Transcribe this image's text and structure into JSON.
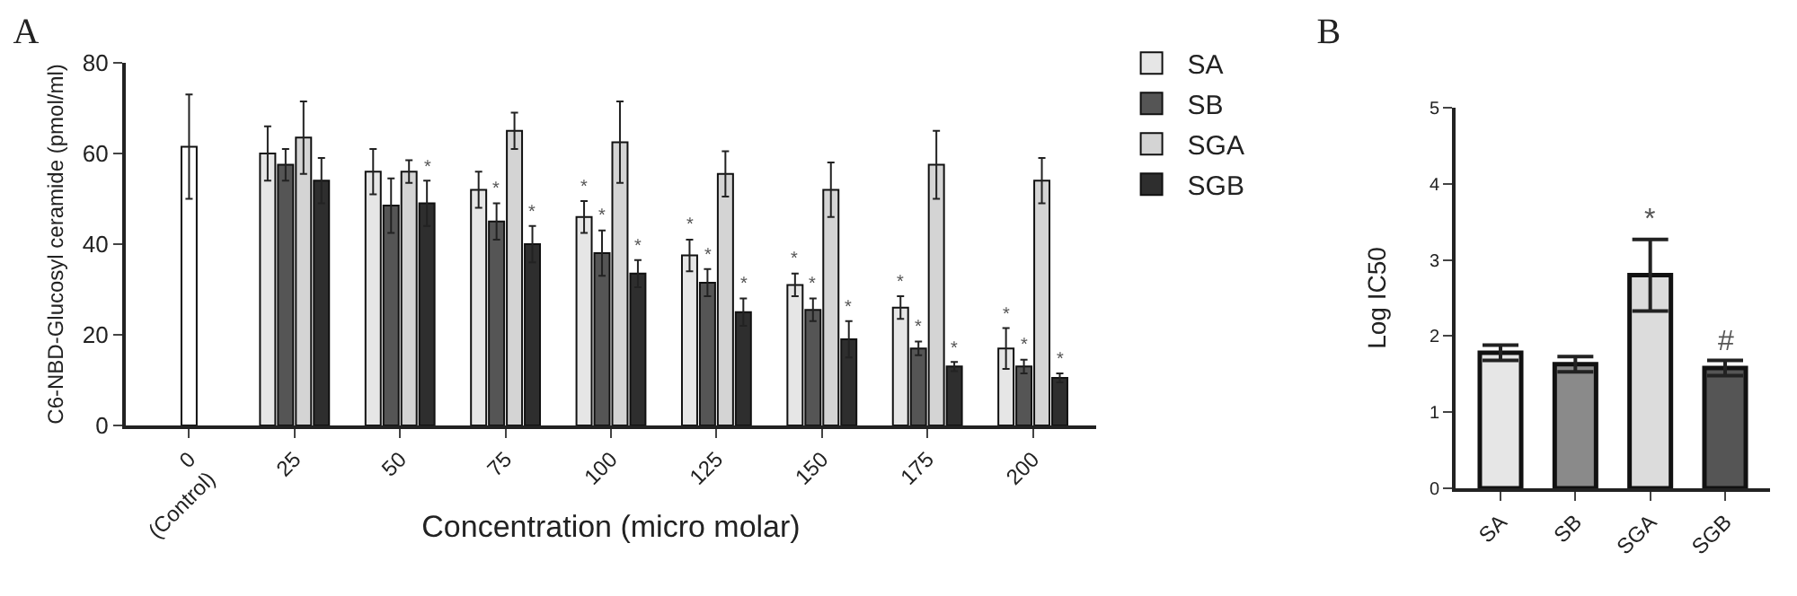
{
  "chart_data": [
    {
      "type": "bar",
      "title": "A",
      "xlabel": "Concentration (micro molar)",
      "ylabel": "C6-NBD-Glucosyl ceramide (pmol/ml)",
      "categories": [
        "0\n(Control)",
        "25",
        "50",
        "75",
        "100",
        "125",
        "150",
        "175",
        "200"
      ],
      "series": [
        {
          "color": "#ffffff",
          "values": [
            61.5,
            null,
            null,
            null,
            null,
            null,
            null,
            null,
            null
          ],
          "errors": [
            11.5,
            null,
            null,
            null,
            null,
            null,
            null,
            null,
            null
          ]
        },
        {
          "name": "SA",
          "color": "#e6e6e6",
          "values": [
            null,
            60,
            56,
            52,
            46,
            37.5,
            31,
            26,
            17
          ],
          "errors": [
            null,
            6,
            5,
            4,
            3.5,
            3.5,
            2.5,
            2.5,
            4.5
          ],
          "value_labels": [
            null,
            null,
            null,
            null,
            "*",
            "*",
            "*",
            "*",
            "*"
          ]
        },
        {
          "name": "SB",
          "color": "#555555",
          "values": [
            null,
            57.5,
            48.5,
            45,
            38,
            31.5,
            25.5,
            17,
            13
          ],
          "errors": [
            null,
            3.5,
            6,
            4,
            5,
            3,
            2.5,
            1.5,
            1.5
          ],
          "value_labels": [
            null,
            null,
            null,
            "*",
            "*",
            "*",
            "*",
            "*",
            "*"
          ]
        },
        {
          "name": "SGA",
          "color": "#d4d4d4",
          "values": [
            null,
            63.5,
            56,
            65,
            62.5,
            55.5,
            52,
            57.5,
            54
          ],
          "errors": [
            null,
            8,
            2.5,
            4,
            9,
            5,
            6,
            7.5,
            5
          ]
        },
        {
          "name": "SGB",
          "color": "#2e2e2e",
          "values": [
            null,
            54,
            49,
            40,
            33.5,
            25,
            19,
            13,
            10.5
          ],
          "errors": [
            null,
            5,
            5,
            4,
            3,
            3,
            4,
            1,
            1
          ],
          "value_labels": [
            null,
            null,
            "*",
            "*",
            "*",
            "*",
            "*",
            "*",
            "*"
          ]
        }
      ],
      "ylim": [
        0,
        80
      ],
      "yticks": [
        0,
        20,
        40,
        60,
        80
      ],
      "grid": false,
      "legend": "top right"
    },
    {
      "type": "bar",
      "title": "B",
      "ylabel": "Log IC50",
      "categories": [
        "SA",
        "SB",
        "SGA",
        "SGB"
      ],
      "values": [
        1.78,
        1.63,
        2.8,
        1.58
      ],
      "errors": [
        0.1,
        0.1,
        0.47,
        0.1
      ],
      "colors": [
        "#e6e6e6",
        "#8a8a8a",
        "#dcdcdc",
        "#555555"
      ],
      "value_labels": [
        null,
        null,
        "*",
        "#"
      ],
      "ylim": [
        0,
        5
      ],
      "yticks": [
        0,
        1,
        2,
        3,
        4,
        5
      ],
      "grid": false,
      "legend": false
    }
  ]
}
